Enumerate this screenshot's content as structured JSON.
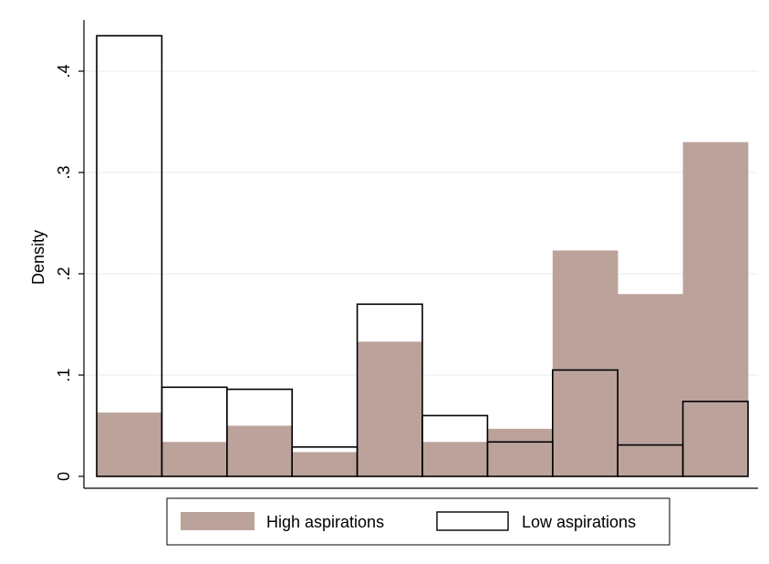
{
  "chart_data": {
    "type": "bar",
    "subtype": "overlaid-histogram",
    "xlabel": "",
    "ylabel": "Density",
    "ylim": [
      0,
      0.45
    ],
    "yticks": [
      {
        "value": 0,
        "label": "0"
      },
      {
        "value": 0.1,
        "label": ".1"
      },
      {
        "value": 0.2,
        "label": ".2"
      },
      {
        "value": 0.3,
        "label": ".3"
      },
      {
        "value": 0.4,
        "label": ".4"
      }
    ],
    "grid": true,
    "legend_position": "bottom",
    "bins": 10,
    "series": [
      {
        "name": "High aspirations",
        "style": "filled",
        "color": "#BBA39C",
        "values": [
          0.063,
          0.034,
          0.05,
          0.024,
          0.133,
          0.034,
          0.047,
          0.223,
          0.18,
          0.33
        ]
      },
      {
        "name": "Low aspirations",
        "style": "outline",
        "color": "#000000",
        "values": [
          0.435,
          0.088,
          0.086,
          0.029,
          0.17,
          0.06,
          0.034,
          0.105,
          0.031,
          0.074
        ]
      }
    ]
  }
}
